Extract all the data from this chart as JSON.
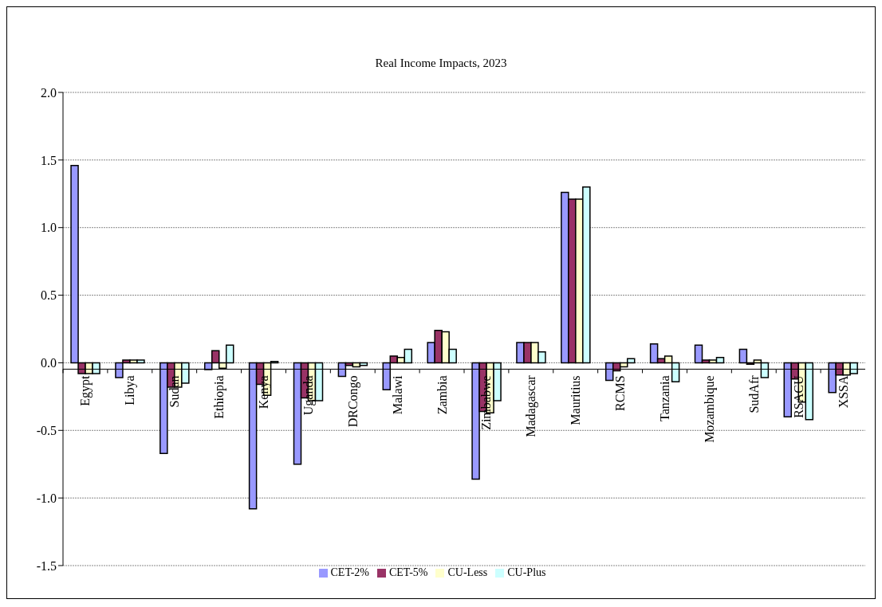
{
  "chart_data": {
    "type": "bar",
    "title": "Real Income Impacts, 2023",
    "categories": [
      "Egypt",
      "Libya",
      "Sudan",
      "Ethiopia",
      "Kenya",
      "Uganda",
      "DRCongo",
      "Malawi",
      "Zambia",
      "Zimbabwe",
      "Madagascar",
      "Mauritius",
      "RCMS",
      "Tanzania",
      "Mozambique",
      "SudAfr",
      "RSACU",
      "XSSA"
    ],
    "series": [
      {
        "name": "CET-2%",
        "color": "#9999ff",
        "values": [
          1.46,
          -0.11,
          -0.67,
          -0.05,
          -1.08,
          -0.75,
          -0.1,
          -0.2,
          0.15,
          -0.86,
          0.15,
          1.26,
          -0.13,
          0.14,
          0.13,
          0.1,
          -0.4,
          -0.22
        ]
      },
      {
        "name": "CET-5%",
        "color": "#993366",
        "values": [
          -0.08,
          0.02,
          -0.18,
          0.09,
          -0.16,
          -0.26,
          -0.02,
          0.05,
          0.24,
          -0.36,
          0.15,
          1.21,
          -0.06,
          0.03,
          0.02,
          -0.01,
          -0.12,
          -0.09
        ]
      },
      {
        "name": "CU-Less",
        "color": "#ffffcc",
        "values": [
          -0.08,
          0.02,
          -0.18,
          -0.04,
          -0.24,
          -0.28,
          -0.03,
          0.04,
          0.23,
          -0.37,
          0.15,
          1.21,
          -0.03,
          0.05,
          0.02,
          0.02,
          -0.29,
          -0.09
        ]
      },
      {
        "name": "CU-Plus",
        "color": "#ccffff",
        "values": [
          -0.08,
          0.02,
          -0.15,
          0.13,
          0.01,
          -0.28,
          -0.02,
          0.1,
          0.1,
          -0.28,
          0.08,
          1.3,
          0.03,
          -0.14,
          0.04,
          -0.11,
          -0.42,
          -0.08
        ]
      }
    ],
    "ylim": [
      -1.5,
      2.0
    ],
    "yticks": [
      {
        "value": -1.5,
        "label": "-1.5"
      },
      {
        "value": -1.0,
        "label": "-1.0"
      },
      {
        "value": -0.5,
        "label": "-0.5"
      },
      {
        "value": 0,
        "label": "0.0"
      },
      {
        "value": 0.5,
        "label": "0.5"
      },
      {
        "value": 1.0,
        "label": "1.0"
      },
      {
        "value": 1.5,
        "label": "1.5"
      },
      {
        "value": 2.0,
        "label": "2.0"
      }
    ],
    "grid": "y",
    "legend": "bottom"
  }
}
